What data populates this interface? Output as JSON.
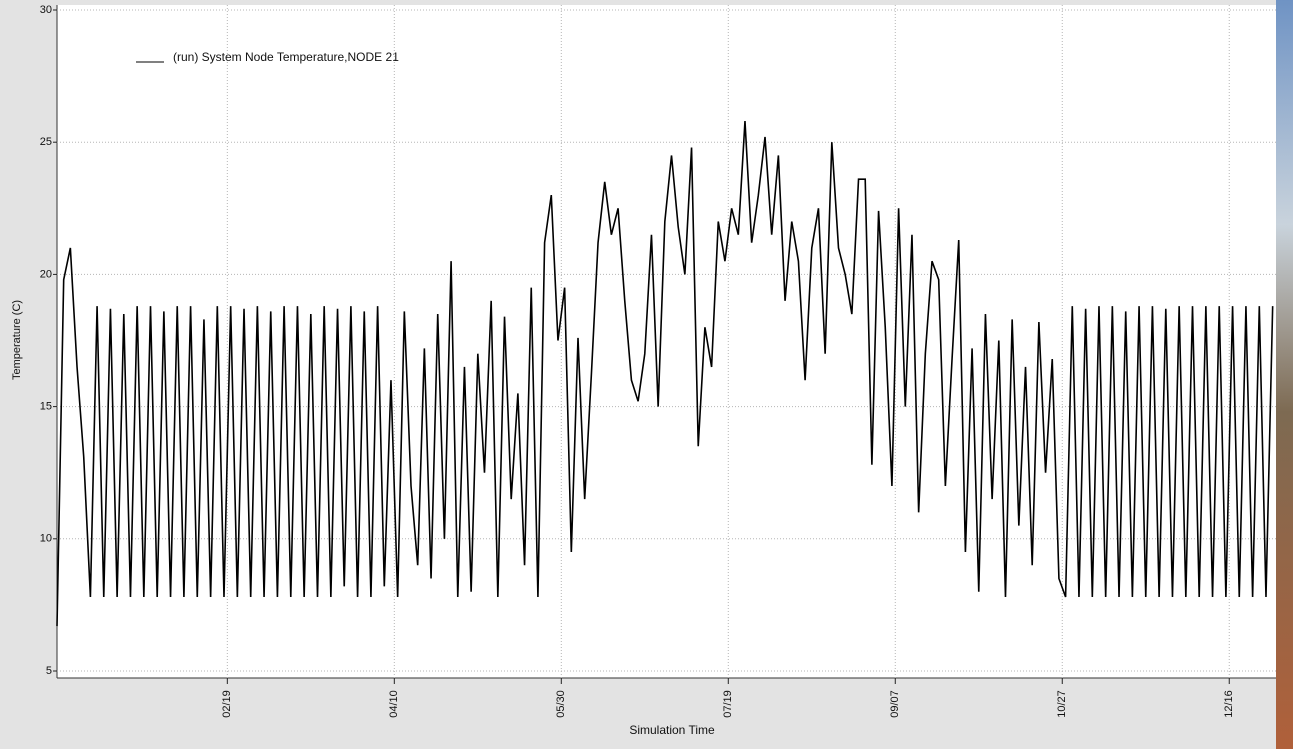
{
  "chart_data": {
    "type": "line",
    "ylabel": "Temperature (C)",
    "xlabel": "Simulation Time",
    "grid": true,
    "xlim": [
      0,
      365
    ],
    "ylim": [
      5,
      30
    ],
    "yticks": [
      5,
      10,
      15,
      20,
      25,
      30
    ],
    "xticks": [
      {
        "value": 51,
        "label": "02/19"
      },
      {
        "value": 101,
        "label": "04/10"
      },
      {
        "value": 151,
        "label": "05/30"
      },
      {
        "value": 201,
        "label": "07/19"
      },
      {
        "value": 251,
        "label": "09/07"
      },
      {
        "value": 301,
        "label": "10/27"
      },
      {
        "value": 351,
        "label": "12/16"
      }
    ],
    "series": [
      {
        "name": "(run) System Node Temperature,NODE 21",
        "color": "#000000",
        "x": [
          0,
          2,
          4,
          6,
          8,
          10,
          12,
          14,
          16,
          18,
          20,
          22,
          24,
          26,
          28,
          30,
          32,
          34,
          36,
          38,
          40,
          42,
          44,
          46,
          48,
          50,
          52,
          54,
          56,
          58,
          60,
          62,
          64,
          66,
          68,
          70,
          72,
          74,
          76,
          78,
          80,
          82,
          84,
          86,
          88,
          90,
          92,
          94,
          96,
          98,
          100,
          102,
          104,
          106,
          108,
          110,
          112,
          114,
          116,
          118,
          120,
          122,
          124,
          126,
          128,
          130,
          132,
          134,
          136,
          138,
          140,
          142,
          144,
          146,
          148,
          150,
          152,
          154,
          156,
          158,
          160,
          162,
          164,
          166,
          168,
          170,
          172,
          174,
          176,
          178,
          180,
          182,
          184,
          186,
          188,
          190,
          192,
          194,
          196,
          198,
          200,
          202,
          204,
          206,
          208,
          210,
          212,
          214,
          216,
          218,
          220,
          222,
          224,
          226,
          228,
          230,
          232,
          234,
          236,
          238,
          240,
          242,
          244,
          246,
          248,
          250,
          252,
          254,
          256,
          258,
          260,
          262,
          264,
          266,
          268,
          270,
          272,
          274,
          276,
          278,
          280,
          282,
          284,
          286,
          288,
          290,
          292,
          294,
          296,
          298,
          300,
          302,
          304,
          306,
          308,
          310,
          312,
          314,
          316,
          318,
          320,
          322,
          324,
          326,
          328,
          330,
          332,
          334,
          336,
          338,
          340,
          342,
          344,
          346,
          348,
          350,
          352,
          354,
          356,
          358,
          360,
          362,
          364
        ],
        "values": [
          6.7,
          19.8,
          21.0,
          16.5,
          13.1,
          7.8,
          18.8,
          7.8,
          18.7,
          7.8,
          18.5,
          7.8,
          18.8,
          7.8,
          18.8,
          7.8,
          18.6,
          7.8,
          18.8,
          7.8,
          18.8,
          7.8,
          18.3,
          7.8,
          18.8,
          7.8,
          18.8,
          7.8,
          18.7,
          7.8,
          18.8,
          7.8,
          18.6,
          7.8,
          18.8,
          7.8,
          18.8,
          7.8,
          18.5,
          7.8,
          18.8,
          7.8,
          18.7,
          8.2,
          18.8,
          7.8,
          18.6,
          7.8,
          18.8,
          8.2,
          16,
          7.8,
          18.6,
          12,
          9,
          17.2,
          8.5,
          18.5,
          10,
          20.5,
          7.8,
          16.5,
          8,
          17,
          12.5,
          19,
          7.8,
          18.4,
          11.5,
          15.5,
          9,
          19.5,
          7.8,
          21.2,
          23,
          17.5,
          19.5,
          9.5,
          17.6,
          11.5,
          16.2,
          21.2,
          23.5,
          21.5,
          22.5,
          19,
          16,
          15.2,
          17,
          21.5,
          15,
          22,
          24.5,
          21.8,
          20,
          24.8,
          13.5,
          18,
          16.5,
          22,
          20.5,
          22.5,
          21.5,
          25.8,
          21.2,
          23,
          25.2,
          21.5,
          24.5,
          19,
          22,
          20.5,
          16,
          21,
          22.5,
          17,
          25,
          21,
          20,
          18.5,
          23.6,
          23.6,
          12.8,
          22.4,
          18,
          12,
          22.5,
          15,
          21.5,
          11,
          17,
          20.5,
          19.8,
          12,
          16.8,
          21.3,
          9.5,
          17.2,
          8,
          18.5,
          11.5,
          17.5,
          7.8,
          18.3,
          10.5,
          16.5,
          9,
          18.2,
          12.5,
          16.8,
          8.5,
          7.8,
          18.8,
          7.8,
          18.7,
          7.8,
          18.8,
          7.8,
          18.8,
          7.8,
          18.6,
          7.8,
          18.8,
          7.8,
          18.8,
          7.8,
          18.7,
          7.8,
          18.8,
          7.8,
          18.8,
          7.8,
          18.8,
          7.8,
          18.8,
          7.8,
          18.8,
          7.8,
          18.8,
          7.8,
          18.8,
          7.8,
          18.8
        ]
      }
    ]
  }
}
